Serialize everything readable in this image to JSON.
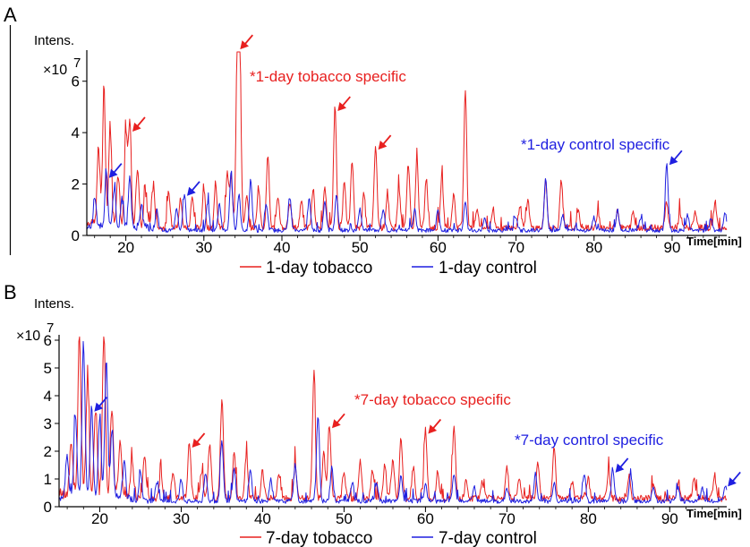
{
  "chart_data": [
    {
      "panel": "A",
      "type": "line",
      "ylabel": "Intens.",
      "y_multiplier": "×10",
      "y_exponent": "7",
      "xlabel": "Time[min]",
      "xlim": [
        15,
        97
      ],
      "ylim": [
        0,
        7
      ],
      "xticks": [
        "20",
        "30",
        "40",
        "50",
        "60",
        "70",
        "80",
        "90"
      ],
      "yticks": [
        "0",
        "2",
        "4",
        "6"
      ],
      "legend": [
        {
          "name": "1-day tobacco",
          "color": "#e8201f"
        },
        {
          "name": "1-day control",
          "color": "#1f1fe0"
        }
      ],
      "series": [
        {
          "name": "1-day tobacco",
          "color": "#e8201f",
          "baseline": 0.3,
          "peaks": [
            [
              16.5,
              3.0
            ],
            [
              17.2,
              5.2
            ],
            [
              18.0,
              3.8
            ],
            [
              19.0,
              2.0
            ],
            [
              20.0,
              3.5
            ],
            [
              20.5,
              3.9
            ],
            [
              21.5,
              2.2
            ],
            [
              22.5,
              1.3
            ],
            [
              23.5,
              1.5
            ],
            [
              25.5,
              1.4
            ],
            [
              27.0,
              1.1
            ],
            [
              28.5,
              1.2
            ],
            [
              30.0,
              1.5
            ],
            [
              31.5,
              1.6
            ],
            [
              33.0,
              2.1
            ],
            [
              33.5,
              1.9
            ],
            [
              34.3,
              7.1
            ],
            [
              34.6,
              6.5
            ],
            [
              35.5,
              1.2
            ],
            [
              37.0,
              1.6
            ],
            [
              38.2,
              2.8
            ],
            [
              39.5,
              1.2
            ],
            [
              41.0,
              1.0
            ],
            [
              42.5,
              1.1
            ],
            [
              44.0,
              1.5
            ],
            [
              45.5,
              1.6
            ],
            [
              46.8,
              4.7
            ],
            [
              48.0,
              1.7
            ],
            [
              49.0,
              2.6
            ],
            [
              50.5,
              1.3
            ],
            [
              52.0,
              3.2
            ],
            [
              53.5,
              1.2
            ],
            [
              55.0,
              1.6
            ],
            [
              56.2,
              2.5
            ],
            [
              57.3,
              2.6
            ],
            [
              58.5,
              1.9
            ],
            [
              60.5,
              2.0
            ],
            [
              62.0,
              1.3
            ],
            [
              63.5,
              5.4
            ],
            [
              65.0,
              0.7
            ],
            [
              67.0,
              0.6
            ],
            [
              70.5,
              0.9
            ],
            [
              71.5,
              1.1
            ],
            [
              73.8,
              1.8
            ],
            [
              75.8,
              1.8
            ],
            [
              78.0,
              0.6
            ],
            [
              80.5,
              0.5
            ],
            [
              83.0,
              0.7
            ],
            [
              85.0,
              0.6
            ],
            [
              89.3,
              1.0
            ],
            [
              91.0,
              0.5
            ],
            [
              93.0,
              0.6
            ],
            [
              95.5,
              1.0
            ]
          ]
        },
        {
          "name": "1-day control",
          "color": "#1f1fe0",
          "baseline": 0.2,
          "peaks": [
            [
              16.0,
              1.2
            ],
            [
              17.5,
              2.1
            ],
            [
              18.5,
              1.5
            ],
            [
              19.5,
              1.2
            ],
            [
              20.5,
              2.0
            ],
            [
              22.0,
              0.8
            ],
            [
              24.0,
              0.7
            ],
            [
              26.5,
              0.9
            ],
            [
              27.5,
              1.4
            ],
            [
              30.5,
              1.1
            ],
            [
              32.0,
              1.0
            ],
            [
              33.5,
              2.3
            ],
            [
              34.5,
              1.4
            ],
            [
              36.0,
              2.0
            ],
            [
              38.0,
              1.0
            ],
            [
              41.0,
              1.3
            ],
            [
              43.5,
              1.2
            ],
            [
              45.5,
              1.1
            ],
            [
              47.0,
              1.4
            ],
            [
              50.0,
              0.8
            ],
            [
              53.0,
              0.8
            ],
            [
              57.0,
              0.8
            ],
            [
              60.0,
              0.8
            ],
            [
              63.5,
              1.1
            ],
            [
              66.0,
              0.5
            ],
            [
              70.0,
              0.5
            ],
            [
              73.8,
              2.0
            ],
            [
              76.0,
              0.6
            ],
            [
              80.0,
              0.5
            ],
            [
              83.0,
              0.8
            ],
            [
              86.0,
              0.5
            ],
            [
              89.3,
              2.6
            ],
            [
              92.0,
              0.6
            ],
            [
              95.0,
              0.5
            ],
            [
              96.8,
              0.7
            ]
          ]
        }
      ],
      "annotations": [
        {
          "text": "*1-day tobacco specific",
          "color": "#e8201f"
        },
        {
          "text": "*1-day control specific",
          "color": "#1f1fe0"
        }
      ],
      "arrows": [
        {
          "color": "#e8201f",
          "x": 20.5,
          "y": 3.9
        },
        {
          "color": "#e8201f",
          "x": 34.3,
          "y": 7.1
        },
        {
          "color": "#e8201f",
          "x": 46.8,
          "y": 4.7
        },
        {
          "color": "#e8201f",
          "x": 52.0,
          "y": 3.2
        },
        {
          "color": "#1f1fe0",
          "x": 17.5,
          "y": 2.1
        },
        {
          "color": "#1f1fe0",
          "x": 27.5,
          "y": 1.4
        },
        {
          "color": "#1f1fe0",
          "x": 89.3,
          "y": 2.6
        }
      ]
    },
    {
      "panel": "B",
      "type": "line",
      "ylabel": "Intens.",
      "y_multiplier": "×10",
      "y_exponent": "7",
      "xlabel": "Time[min]",
      "xlim": [
        15,
        97
      ],
      "ylim": [
        0,
        6
      ],
      "xticks": [
        "20",
        "30",
        "40",
        "50",
        "60",
        "70",
        "80",
        "90"
      ],
      "yticks": [
        "0",
        "1",
        "2",
        "3",
        "4",
        "5",
        "6"
      ],
      "legend": [
        {
          "name": "7-day tobacco",
          "color": "#e8201f"
        },
        {
          "name": "7-day control",
          "color": "#1f1fe0"
        }
      ],
      "series": [
        {
          "name": "7-day tobacco",
          "color": "#e8201f",
          "baseline": 0.3,
          "peaks": [
            [
              16.5,
              2.0
            ],
            [
              17.5,
              5.9
            ],
            [
              18.5,
              4.0
            ],
            [
              19.5,
              3.0
            ],
            [
              20.5,
              5.9
            ],
            [
              21.5,
              3.0
            ],
            [
              22.5,
              1.8
            ],
            [
              24.0,
              1.2
            ],
            [
              25.5,
              1.6
            ],
            [
              27.5,
              0.9
            ],
            [
              29.0,
              1.0
            ],
            [
              31.0,
              2.0
            ],
            [
              32.5,
              1.0
            ],
            [
              33.5,
              1.9
            ],
            [
              35.0,
              3.6
            ],
            [
              36.5,
              1.7
            ],
            [
              38.0,
              1.6
            ],
            [
              40.0,
              1.0
            ],
            [
              42.0,
              0.9
            ],
            [
              44.0,
              1.2
            ],
            [
              46.3,
              4.3
            ],
            [
              47.5,
              1.6
            ],
            [
              48.2,
              2.7
            ],
            [
              50.0,
              1.0
            ],
            [
              52.0,
              1.3
            ],
            [
              53.5,
              1.0
            ],
            [
              55.0,
              1.2
            ],
            [
              56.0,
              1.4
            ],
            [
              57.0,
              2.2
            ],
            [
              58.5,
              1.1
            ],
            [
              60.0,
              2.5
            ],
            [
              61.5,
              1.0
            ],
            [
              63.5,
              2.6
            ],
            [
              65.0,
              0.6
            ],
            [
              67.0,
              0.6
            ],
            [
              70.0,
              1.1
            ],
            [
              71.5,
              0.8
            ],
            [
              73.8,
              1.3
            ],
            [
              75.8,
              1.8
            ],
            [
              78.0,
              0.6
            ],
            [
              80.0,
              0.7
            ],
            [
              82.5,
              1.0
            ],
            [
              85.0,
              0.8
            ],
            [
              88.0,
              0.6
            ],
            [
              91.0,
              0.5
            ],
            [
              93.0,
              0.7
            ],
            [
              95.5,
              0.9
            ]
          ]
        },
        {
          "name": "7-day control",
          "color": "#1f1fe0",
          "baseline": 0.2,
          "peaks": [
            [
              16.0,
              1.5
            ],
            [
              17.0,
              3.0
            ],
            [
              18.0,
              5.6
            ],
            [
              19.0,
              3.3
            ],
            [
              20.0,
              3.0
            ],
            [
              20.8,
              5.0
            ],
            [
              21.5,
              2.5
            ],
            [
              23.0,
              1.3
            ],
            [
              25.0,
              1.0
            ],
            [
              27.0,
              0.7
            ],
            [
              30.0,
              0.8
            ],
            [
              33.0,
              1.0
            ],
            [
              35.0,
              2.2
            ],
            [
              36.5,
              1.2
            ],
            [
              38.5,
              1.1
            ],
            [
              41.0,
              0.7
            ],
            [
              44.0,
              1.3
            ],
            [
              46.8,
              3.1
            ],
            [
              48.5,
              1.2
            ],
            [
              51.0,
              0.7
            ],
            [
              54.0,
              0.6
            ],
            [
              57.0,
              0.9
            ],
            [
              60.0,
              0.6
            ],
            [
              63.5,
              1.0
            ],
            [
              66.0,
              0.5
            ],
            [
              70.0,
              0.5
            ],
            [
              73.5,
              1.0
            ],
            [
              75.8,
              0.7
            ],
            [
              79.5,
              1.0
            ],
            [
              83.0,
              1.1
            ],
            [
              85.2,
              1.0
            ],
            [
              88.0,
              0.5
            ],
            [
              91.0,
              0.5
            ],
            [
              94.0,
              0.5
            ],
            [
              96.8,
              0.6
            ]
          ]
        }
      ],
      "annotations": [
        {
          "text": "*7-day tobacco specific",
          "color": "#e8201f"
        },
        {
          "text": "*7-day control specific",
          "color": "#1f1fe0"
        }
      ],
      "arrows": [
        {
          "color": "#e8201f",
          "x": 31.0,
          "y": 2.0
        },
        {
          "color": "#e8201f",
          "x": 48.2,
          "y": 2.7
        },
        {
          "color": "#e8201f",
          "x": 60.0,
          "y": 2.5
        },
        {
          "color": "#1f1fe0",
          "x": 19.0,
          "y": 3.3
        },
        {
          "color": "#1f1fe0",
          "x": 83.0,
          "y": 1.1
        },
        {
          "color": "#1f1fe0",
          "x": 96.8,
          "y": 0.6
        }
      ]
    }
  ]
}
